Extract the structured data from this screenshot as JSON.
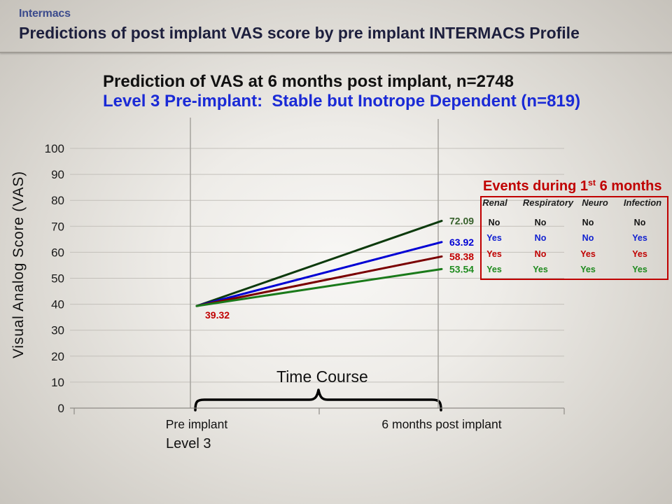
{
  "slide": {
    "logo_text": "Intermacs",
    "title": "Predictions of post implant VAS score by pre implant INTERMACS Profile",
    "colors": {
      "title": "#1d1f3d"
    }
  },
  "chart_data": {
    "type": "line",
    "title": "Prediction of VAS at 6 months post implant, n=2748",
    "subtitle": "Level 3 Pre-implant:  Stable but Inotrope Dependent (n=819)",
    "ylabel": "Visual Analog Score (VAS)",
    "categories": [
      "Pre implant",
      "6 months post implant"
    ],
    "ylim": [
      0,
      100
    ],
    "yticks": [
      0,
      10,
      20,
      30,
      40,
      50,
      60,
      70,
      80,
      90,
      100
    ],
    "grid": true,
    "series": [
      {
        "values": [
          39.32,
          72.09
        ],
        "color": "#0c3a0c",
        "label_color": "#355f2a"
      },
      {
        "values": [
          39.32,
          63.92
        ],
        "color": "#0000d4",
        "label_color": "#0000d4"
      },
      {
        "values": [
          39.32,
          58.38
        ],
        "color": "#7a0000",
        "label_color": "#c00000"
      },
      {
        "values": [
          39.32,
          53.54
        ],
        "color": "#1a7a1a",
        "label_color": "#1f8c1f"
      }
    ],
    "start_label_color": "#c00000",
    "annotations": {
      "bracket_label": "Time Course",
      "category_note": "Level 3"
    },
    "colors": {
      "title": "#111111",
      "subtitle": "#1a2ad6"
    }
  },
  "events_table": {
    "title_before": "Events during 1",
    "title_sup": "st",
    "title_after": "6 months",
    "title_color": "#c00000",
    "border_color": "#c00000",
    "columns": [
      "Renal",
      "Respiratory",
      "Neuro",
      "Infection"
    ],
    "rows": [
      {
        "values": [
          "No",
          "No",
          "No",
          "No"
        ],
        "color": "#141414"
      },
      {
        "values": [
          "Yes",
          "No",
          "No",
          "Yes"
        ],
        "color": "#1020d0"
      },
      {
        "values": [
          "Yes",
          "No",
          "Yes",
          "Yes"
        ],
        "color": "#c00000"
      },
      {
        "values": [
          "Yes",
          "Yes",
          "Yes",
          "Yes"
        ],
        "color": "#1e8a1e"
      }
    ]
  }
}
